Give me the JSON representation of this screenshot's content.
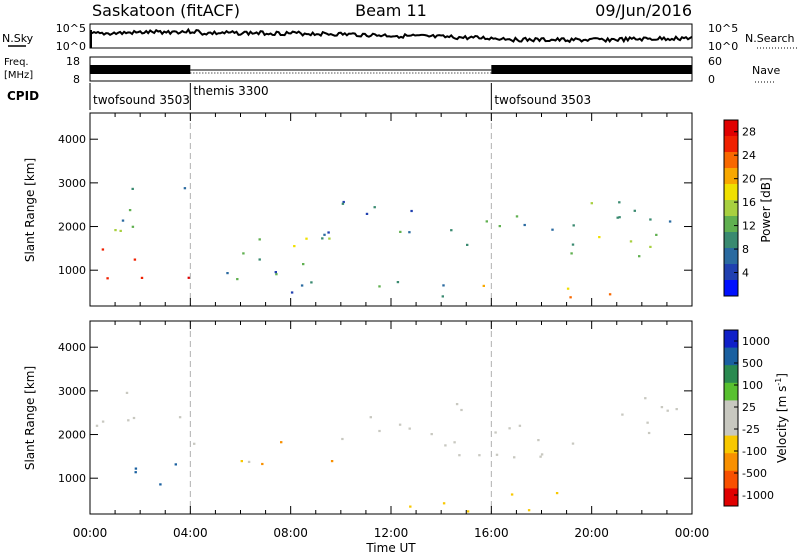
{
  "header": {
    "station": "Saskatoon (fitACF)",
    "beam": "Beam 11",
    "date": "09/Jun/2016"
  },
  "noise_panel": {
    "left_label": "N.Sky",
    "left_ticks": [
      "10^5",
      "10^0"
    ],
    "right_ticks": [
      "10^5",
      "10^0"
    ],
    "right_label": "N.Search"
  },
  "freq_panel": {
    "left_label_1": "Freq.",
    "left_label_2": "[MHz]",
    "left_ticks": [
      "18",
      "8"
    ],
    "right_ticks": [
      "60",
      "0"
    ],
    "right_label": "Nave"
  },
  "cpid": {
    "label": "CPID",
    "segments": [
      {
        "name": "twofsound 3503",
        "start_hour": 0,
        "end_hour": 4
      },
      {
        "name": "themis 3300",
        "start_hour": 4,
        "end_hour": 16
      },
      {
        "name": "twofsound 3503",
        "start_hour": 16,
        "end_hour": 24
      }
    ]
  },
  "colors": {
    "power": [
      "#0010ff",
      "#2040b0",
      "#2a6aa0",
      "#3a8a70",
      "#60b050",
      "#a8d040",
      "#f0e000",
      "#f8a800",
      "#f86800",
      "#f02000",
      "#e00000"
    ],
    "velocity": [
      "#e00000",
      "#f85000",
      "#f89000",
      "#f8c800",
      "#c8c8c0",
      "#c8c8c0",
      "#58c030",
      "#2a8a50",
      "#1a60a0",
      "#1020c8"
    ]
  },
  "chart_data": [
    {
      "type": "heatmap",
      "quantity": "power",
      "ylabel": "Slant Range [km]",
      "x_range_hours": [
        0,
        24
      ],
      "ylim": [
        180,
        4600
      ],
      "yticks": [
        1000,
        2000,
        3000,
        4000
      ],
      "xticks": [
        "00:00",
        "04:00",
        "08:00",
        "12:00",
        "16:00",
        "20:00",
        "00:00"
      ],
      "colorbar": {
        "label": "Power [dB]",
        "ticks": [
          "4",
          "8",
          "12",
          "16",
          "20",
          "24",
          "28"
        ],
        "range": [
          0,
          30
        ]
      },
      "regions": [
        {
          "t0": 0.0,
          "t1": 4.2,
          "r0": 1800,
          "r1": 3000,
          "value": 12
        },
        {
          "t0": 0.3,
          "t1": 4.4,
          "r0": 700,
          "r1": 1500,
          "value": 26
        },
        {
          "t0": 4.5,
          "t1": 10.2,
          "r0": 1100,
          "r1": 1900,
          "value": 14
        },
        {
          "t0": 5.0,
          "t1": 16.0,
          "r0": 300,
          "r1": 1000,
          "value": 8
        },
        {
          "t0": 9.2,
          "t1": 16.5,
          "r0": 1500,
          "r1": 2600,
          "value": 9
        },
        {
          "t0": 12.5,
          "t1": 22.5,
          "r0": 1800,
          "r1": 2500,
          "value": 10
        },
        {
          "t0": 15.5,
          "t1": 21.5,
          "r0": 250,
          "r1": 700,
          "value": 20
        },
        {
          "t0": 18.5,
          "t1": 24.0,
          "r0": 1200,
          "r1": 2600,
          "value": 12
        }
      ]
    },
    {
      "type": "heatmap",
      "quantity": "velocity",
      "ylabel": "Slant Range [km]",
      "xlabel": "Time UT",
      "x_range_hours": [
        0,
        24
      ],
      "ylim": [
        180,
        4600
      ],
      "yticks": [
        1000,
        2000,
        3000,
        4000
      ],
      "xticks": [
        "00:00",
        "04:00",
        "08:00",
        "12:00",
        "16:00",
        "20:00",
        "00:00"
      ],
      "colorbar": {
        "label": "Velocity [m s^-1]",
        "ticks": [
          "1000",
          "500",
          "100",
          "25",
          "-25",
          "-100",
          "-500",
          "-1000"
        ]
      },
      "regions": [
        {
          "t0": 0.0,
          "t1": 4.2,
          "r0": 1800,
          "r1": 3000,
          "value": 0
        },
        {
          "t0": 1.2,
          "t1": 4.4,
          "r0": 700,
          "r1": 1500,
          "value": 600
        },
        {
          "t0": 4.5,
          "t1": 6.5,
          "r0": 1200,
          "r1": 1800,
          "value": -25
        },
        {
          "t0": 6.5,
          "t1": 8.5,
          "r0": 1300,
          "r1": 1900,
          "value": -300
        },
        {
          "t0": 9.3,
          "t1": 10.3,
          "r0": 1200,
          "r1": 2000,
          "value": -300
        },
        {
          "t0": 10.0,
          "t1": 24.0,
          "r0": 1500,
          "r1": 2900,
          "value": 0
        },
        {
          "t0": 12.0,
          "t1": 22.0,
          "r0": 250,
          "r1": 700,
          "value": -60
        },
        {
          "t0": 18.6,
          "t1": 19.3,
          "r0": 2500,
          "r1": 2800,
          "value": 200
        }
      ]
    }
  ]
}
